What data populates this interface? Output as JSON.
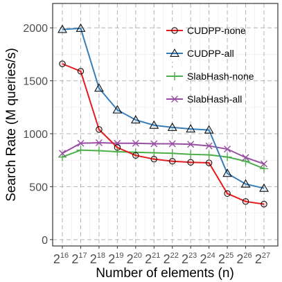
{
  "chart_data": {
    "type": "line",
    "x_exponents": [
      16,
      17,
      18,
      19,
      20,
      21,
      22,
      23,
      24,
      25,
      26,
      27
    ],
    "x_base": "2",
    "xlabel": "Number of elements (n)",
    "ylabel": "Search Rate (M queries/s)",
    "ylim": [
      -60,
      2230
    ],
    "yticks": [
      0,
      500,
      1000,
      1500,
      2000
    ],
    "grid": true,
    "legend_position": "top-right",
    "series": [
      {
        "name": "CUDPP-none",
        "color": "#e41a1c",
        "marker": "circle",
        "values": [
          1660,
          1590,
          1040,
          870,
          795,
          760,
          740,
          730,
          725,
          435,
          360,
          335
        ]
      },
      {
        "name": "CUDPP-all",
        "color": "#377eb8",
        "marker": "triangle",
        "values": [
          1985,
          1995,
          1430,
          1225,
          1130,
          1080,
          1060,
          1045,
          1035,
          625,
          525,
          485
        ]
      },
      {
        "name": "SlabHash-none",
        "color": "#4daf4a",
        "marker": "plus",
        "values": [
          780,
          845,
          840,
          830,
          825,
          820,
          815,
          805,
          800,
          780,
          740,
          670
        ]
      },
      {
        "name": "SlabHash-all",
        "color": "#984ea3",
        "marker": "cross",
        "values": [
          815,
          910,
          915,
          910,
          910,
          905,
          905,
          900,
          885,
          855,
          775,
          715
        ]
      }
    ]
  }
}
